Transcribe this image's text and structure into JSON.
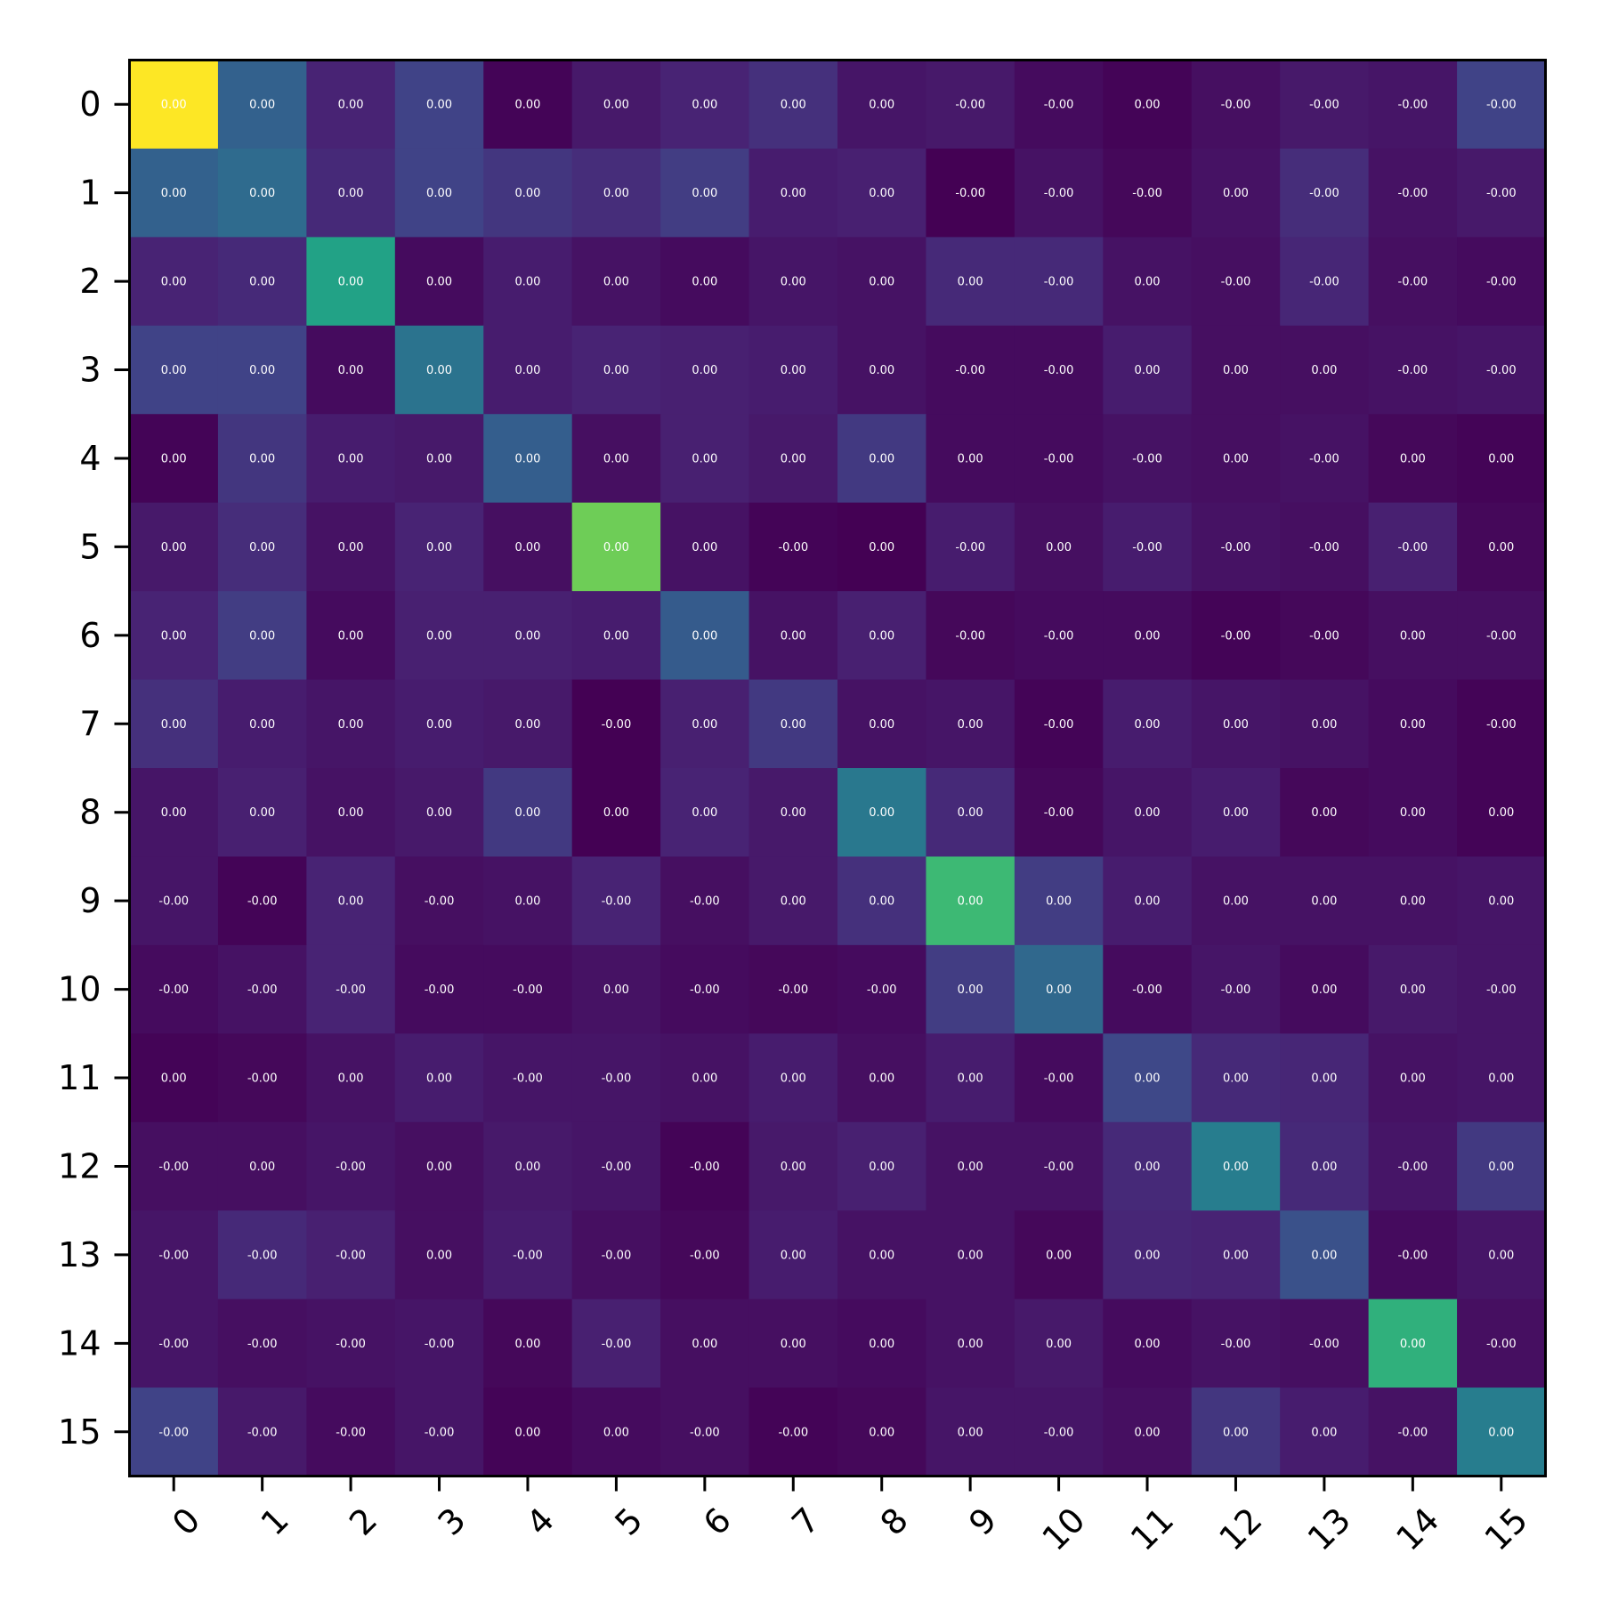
{
  "chart_data": {
    "type": "heatmap",
    "title": "",
    "xlabel": "",
    "ylabel": "",
    "colormap": "viridis",
    "x_categories": [
      "0",
      "1",
      "2",
      "3",
      "4",
      "5",
      "6",
      "7",
      "8",
      "9",
      "10",
      "11",
      "12",
      "13",
      "14",
      "15"
    ],
    "y_categories": [
      "0",
      "1",
      "2",
      "3",
      "4",
      "5",
      "6",
      "7",
      "8",
      "9",
      "10",
      "11",
      "12",
      "13",
      "14",
      "15"
    ],
    "cell_labels": [
      [
        "0.00",
        "0.00",
        "0.00",
        "0.00",
        "0.00",
        "0.00",
        "0.00",
        "0.00",
        "0.00",
        "-0.00",
        "-0.00",
        "0.00",
        "-0.00",
        "-0.00",
        "-0.00",
        "-0.00"
      ],
      [
        "0.00",
        "0.00",
        "0.00",
        "0.00",
        "0.00",
        "0.00",
        "0.00",
        "0.00",
        "0.00",
        "-0.00",
        "-0.00",
        "-0.00",
        "0.00",
        "-0.00",
        "-0.00",
        "-0.00"
      ],
      [
        "0.00",
        "0.00",
        "0.00",
        "0.00",
        "0.00",
        "0.00",
        "0.00",
        "0.00",
        "0.00",
        "0.00",
        "-0.00",
        "0.00",
        "-0.00",
        "-0.00",
        "-0.00",
        "-0.00"
      ],
      [
        "0.00",
        "0.00",
        "0.00",
        "0.00",
        "0.00",
        "0.00",
        "0.00",
        "0.00",
        "0.00",
        "-0.00",
        "-0.00",
        "0.00",
        "0.00",
        "0.00",
        "-0.00",
        "-0.00"
      ],
      [
        "0.00",
        "0.00",
        "0.00",
        "0.00",
        "0.00",
        "0.00",
        "0.00",
        "0.00",
        "0.00",
        "0.00",
        "-0.00",
        "-0.00",
        "0.00",
        "-0.00",
        "0.00",
        "0.00"
      ],
      [
        "0.00",
        "0.00",
        "0.00",
        "0.00",
        "0.00",
        "0.00",
        "0.00",
        "-0.00",
        "0.00",
        "-0.00",
        "0.00",
        "-0.00",
        "-0.00",
        "-0.00",
        "-0.00",
        "0.00"
      ],
      [
        "0.00",
        "0.00",
        "0.00",
        "0.00",
        "0.00",
        "0.00",
        "0.00",
        "0.00",
        "0.00",
        "-0.00",
        "-0.00",
        "0.00",
        "-0.00",
        "-0.00",
        "0.00",
        "-0.00"
      ],
      [
        "0.00",
        "0.00",
        "0.00",
        "0.00",
        "0.00",
        "-0.00",
        "0.00",
        "0.00",
        "0.00",
        "0.00",
        "-0.00",
        "0.00",
        "0.00",
        "0.00",
        "0.00",
        "-0.00"
      ],
      [
        "0.00",
        "0.00",
        "0.00",
        "0.00",
        "0.00",
        "0.00",
        "0.00",
        "0.00",
        "0.00",
        "0.00",
        "-0.00",
        "0.00",
        "0.00",
        "0.00",
        "0.00",
        "0.00"
      ],
      [
        "-0.00",
        "-0.00",
        "0.00",
        "-0.00",
        "0.00",
        "-0.00",
        "-0.00",
        "0.00",
        "0.00",
        "0.00",
        "0.00",
        "0.00",
        "0.00",
        "0.00",
        "0.00",
        "0.00"
      ],
      [
        "-0.00",
        "-0.00",
        "-0.00",
        "-0.00",
        "-0.00",
        "0.00",
        "-0.00",
        "-0.00",
        "-0.00",
        "0.00",
        "0.00",
        "-0.00",
        "-0.00",
        "0.00",
        "0.00",
        "-0.00"
      ],
      [
        "0.00",
        "-0.00",
        "0.00",
        "0.00",
        "-0.00",
        "-0.00",
        "0.00",
        "0.00",
        "0.00",
        "0.00",
        "-0.00",
        "0.00",
        "0.00",
        "0.00",
        "0.00",
        "0.00"
      ],
      [
        "-0.00",
        "0.00",
        "-0.00",
        "0.00",
        "0.00",
        "-0.00",
        "-0.00",
        "0.00",
        "0.00",
        "0.00",
        "-0.00",
        "0.00",
        "0.00",
        "0.00",
        "-0.00",
        "0.00"
      ],
      [
        "-0.00",
        "-0.00",
        "-0.00",
        "0.00",
        "-0.00",
        "-0.00",
        "-0.00",
        "0.00",
        "0.00",
        "0.00",
        "0.00",
        "0.00",
        "0.00",
        "0.00",
        "-0.00",
        "0.00"
      ],
      [
        "-0.00",
        "-0.00",
        "-0.00",
        "-0.00",
        "0.00",
        "-0.00",
        "0.00",
        "0.00",
        "0.00",
        "0.00",
        "0.00",
        "0.00",
        "-0.00",
        "-0.00",
        "0.00",
        "-0.00"
      ],
      [
        "-0.00",
        "-0.00",
        "-0.00",
        "-0.00",
        "0.00",
        "0.00",
        "-0.00",
        "-0.00",
        "0.00",
        "0.00",
        "-0.00",
        "0.00",
        "0.00",
        "0.00",
        "-0.00",
        "0.00"
      ]
    ],
    "color_levels": [
      [
        1.0,
        0.31,
        0.1,
        0.2,
        0.01,
        0.07,
        0.1,
        0.14,
        0.06,
        0.07,
        0.03,
        0.01,
        0.04,
        0.07,
        0.06,
        0.2
      ],
      [
        0.31,
        0.35,
        0.12,
        0.2,
        0.16,
        0.13,
        0.18,
        0.08,
        0.09,
        0.0,
        0.05,
        0.02,
        0.05,
        0.13,
        0.05,
        0.07
      ],
      [
        0.1,
        0.12,
        0.58,
        0.03,
        0.08,
        0.05,
        0.03,
        0.06,
        0.05,
        0.12,
        0.12,
        0.05,
        0.04,
        0.11,
        0.04,
        0.03
      ],
      [
        0.2,
        0.2,
        0.03,
        0.38,
        0.08,
        0.1,
        0.09,
        0.08,
        0.05,
        0.03,
        0.03,
        0.08,
        0.04,
        0.04,
        0.05,
        0.06
      ],
      [
        0.01,
        0.16,
        0.08,
        0.07,
        0.3,
        0.04,
        0.09,
        0.07,
        0.17,
        0.03,
        0.03,
        0.05,
        0.04,
        0.05,
        0.02,
        0.01
      ],
      [
        0.07,
        0.13,
        0.05,
        0.1,
        0.04,
        0.78,
        0.05,
        0.01,
        0.0,
        0.08,
        0.04,
        0.08,
        0.05,
        0.04,
        0.09,
        0.02
      ],
      [
        0.1,
        0.18,
        0.03,
        0.09,
        0.09,
        0.08,
        0.29,
        0.05,
        0.09,
        0.02,
        0.03,
        0.03,
        0.01,
        0.02,
        0.04,
        0.04
      ],
      [
        0.14,
        0.08,
        0.06,
        0.08,
        0.07,
        0.0,
        0.09,
        0.17,
        0.05,
        0.06,
        0.01,
        0.08,
        0.06,
        0.05,
        0.03,
        0.01
      ],
      [
        0.06,
        0.09,
        0.05,
        0.07,
        0.17,
        0.0,
        0.1,
        0.07,
        0.4,
        0.12,
        0.02,
        0.06,
        0.08,
        0.02,
        0.03,
        0.01
      ],
      [
        0.06,
        0.01,
        0.1,
        0.04,
        0.05,
        0.1,
        0.04,
        0.07,
        0.14,
        0.68,
        0.18,
        0.08,
        0.05,
        0.05,
        0.05,
        0.06
      ],
      [
        0.03,
        0.05,
        0.1,
        0.03,
        0.03,
        0.05,
        0.03,
        0.02,
        0.03,
        0.18,
        0.34,
        0.03,
        0.06,
        0.03,
        0.07,
        0.06
      ],
      [
        0.01,
        0.02,
        0.05,
        0.08,
        0.06,
        0.06,
        0.05,
        0.08,
        0.04,
        0.08,
        0.03,
        0.22,
        0.12,
        0.11,
        0.05,
        0.06
      ],
      [
        0.04,
        0.04,
        0.06,
        0.04,
        0.07,
        0.06,
        0.01,
        0.07,
        0.09,
        0.05,
        0.05,
        0.12,
        0.42,
        0.12,
        0.06,
        0.17
      ],
      [
        0.06,
        0.12,
        0.09,
        0.04,
        0.08,
        0.04,
        0.02,
        0.08,
        0.05,
        0.05,
        0.02,
        0.11,
        0.1,
        0.25,
        0.03,
        0.06
      ],
      [
        0.06,
        0.04,
        0.05,
        0.06,
        0.02,
        0.09,
        0.04,
        0.04,
        0.03,
        0.05,
        0.07,
        0.03,
        0.05,
        0.04,
        0.64,
        0.04
      ],
      [
        0.2,
        0.07,
        0.03,
        0.06,
        0.01,
        0.03,
        0.04,
        0.01,
        0.02,
        0.06,
        0.06,
        0.04,
        0.16,
        0.08,
        0.05,
        0.42
      ]
    ]
  }
}
